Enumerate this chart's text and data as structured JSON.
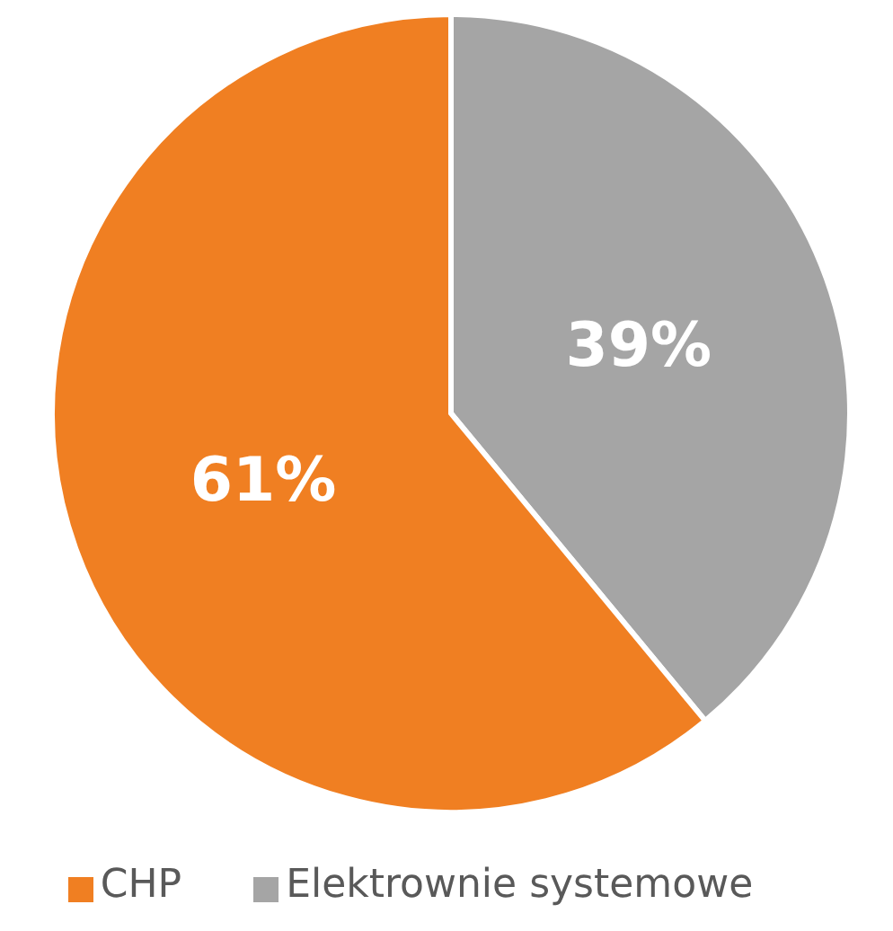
{
  "chart_data": {
    "type": "pie",
    "categories": [
      "Elektrownie systemowe",
      "CHP"
    ],
    "values": [
      39,
      61
    ],
    "colors": [
      "#a5a5a5",
      "#f07f22"
    ],
    "value_labels": [
      "39%",
      "61%"
    ],
    "legend": "bottom"
  }
}
